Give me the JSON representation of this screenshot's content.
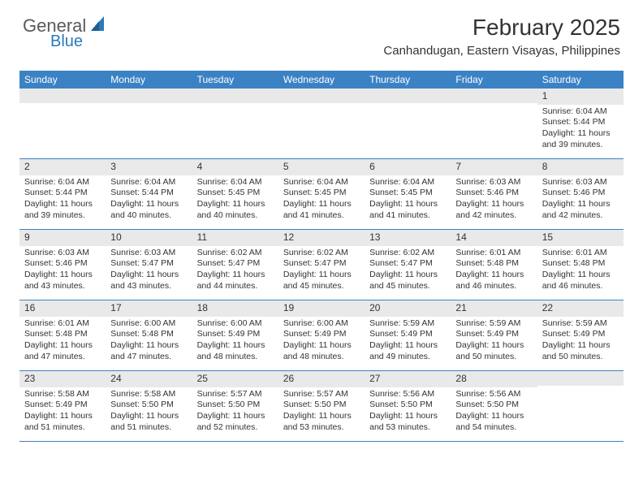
{
  "logo": {
    "text1": "General",
    "text2": "Blue"
  },
  "title": "February 2025",
  "subtitle": "Canhandugan, Eastern Visayas, Philippines",
  "colors": {
    "header_bg": "#3b82c4",
    "header_text": "#ffffff",
    "daynum_bg": "#e9e9e9",
    "row_border": "#3b82c4",
    "body_text": "#333333",
    "logo_gray": "#5a5a5a",
    "logo_blue": "#2a7ab9",
    "page_bg": "#ffffff"
  },
  "day_names": [
    "Sunday",
    "Monday",
    "Tuesday",
    "Wednesday",
    "Thursday",
    "Friday",
    "Saturday"
  ],
  "weeks": [
    [
      {
        "day": "",
        "sunrise": "",
        "sunset": "",
        "daylight1": "",
        "daylight2": ""
      },
      {
        "day": "",
        "sunrise": "",
        "sunset": "",
        "daylight1": "",
        "daylight2": ""
      },
      {
        "day": "",
        "sunrise": "",
        "sunset": "",
        "daylight1": "",
        "daylight2": ""
      },
      {
        "day": "",
        "sunrise": "",
        "sunset": "",
        "daylight1": "",
        "daylight2": ""
      },
      {
        "day": "",
        "sunrise": "",
        "sunset": "",
        "daylight1": "",
        "daylight2": ""
      },
      {
        "day": "",
        "sunrise": "",
        "sunset": "",
        "daylight1": "",
        "daylight2": ""
      },
      {
        "day": "1",
        "sunrise": "Sunrise: 6:04 AM",
        "sunset": "Sunset: 5:44 PM",
        "daylight1": "Daylight: 11 hours",
        "daylight2": "and 39 minutes."
      }
    ],
    [
      {
        "day": "2",
        "sunrise": "Sunrise: 6:04 AM",
        "sunset": "Sunset: 5:44 PM",
        "daylight1": "Daylight: 11 hours",
        "daylight2": "and 39 minutes."
      },
      {
        "day": "3",
        "sunrise": "Sunrise: 6:04 AM",
        "sunset": "Sunset: 5:44 PM",
        "daylight1": "Daylight: 11 hours",
        "daylight2": "and 40 minutes."
      },
      {
        "day": "4",
        "sunrise": "Sunrise: 6:04 AM",
        "sunset": "Sunset: 5:45 PM",
        "daylight1": "Daylight: 11 hours",
        "daylight2": "and 40 minutes."
      },
      {
        "day": "5",
        "sunrise": "Sunrise: 6:04 AM",
        "sunset": "Sunset: 5:45 PM",
        "daylight1": "Daylight: 11 hours",
        "daylight2": "and 41 minutes."
      },
      {
        "day": "6",
        "sunrise": "Sunrise: 6:04 AM",
        "sunset": "Sunset: 5:45 PM",
        "daylight1": "Daylight: 11 hours",
        "daylight2": "and 41 minutes."
      },
      {
        "day": "7",
        "sunrise": "Sunrise: 6:03 AM",
        "sunset": "Sunset: 5:46 PM",
        "daylight1": "Daylight: 11 hours",
        "daylight2": "and 42 minutes."
      },
      {
        "day": "8",
        "sunrise": "Sunrise: 6:03 AM",
        "sunset": "Sunset: 5:46 PM",
        "daylight1": "Daylight: 11 hours",
        "daylight2": "and 42 minutes."
      }
    ],
    [
      {
        "day": "9",
        "sunrise": "Sunrise: 6:03 AM",
        "sunset": "Sunset: 5:46 PM",
        "daylight1": "Daylight: 11 hours",
        "daylight2": "and 43 minutes."
      },
      {
        "day": "10",
        "sunrise": "Sunrise: 6:03 AM",
        "sunset": "Sunset: 5:47 PM",
        "daylight1": "Daylight: 11 hours",
        "daylight2": "and 43 minutes."
      },
      {
        "day": "11",
        "sunrise": "Sunrise: 6:02 AM",
        "sunset": "Sunset: 5:47 PM",
        "daylight1": "Daylight: 11 hours",
        "daylight2": "and 44 minutes."
      },
      {
        "day": "12",
        "sunrise": "Sunrise: 6:02 AM",
        "sunset": "Sunset: 5:47 PM",
        "daylight1": "Daylight: 11 hours",
        "daylight2": "and 45 minutes."
      },
      {
        "day": "13",
        "sunrise": "Sunrise: 6:02 AM",
        "sunset": "Sunset: 5:47 PM",
        "daylight1": "Daylight: 11 hours",
        "daylight2": "and 45 minutes."
      },
      {
        "day": "14",
        "sunrise": "Sunrise: 6:01 AM",
        "sunset": "Sunset: 5:48 PM",
        "daylight1": "Daylight: 11 hours",
        "daylight2": "and 46 minutes."
      },
      {
        "day": "15",
        "sunrise": "Sunrise: 6:01 AM",
        "sunset": "Sunset: 5:48 PM",
        "daylight1": "Daylight: 11 hours",
        "daylight2": "and 46 minutes."
      }
    ],
    [
      {
        "day": "16",
        "sunrise": "Sunrise: 6:01 AM",
        "sunset": "Sunset: 5:48 PM",
        "daylight1": "Daylight: 11 hours",
        "daylight2": "and 47 minutes."
      },
      {
        "day": "17",
        "sunrise": "Sunrise: 6:00 AM",
        "sunset": "Sunset: 5:48 PM",
        "daylight1": "Daylight: 11 hours",
        "daylight2": "and 47 minutes."
      },
      {
        "day": "18",
        "sunrise": "Sunrise: 6:00 AM",
        "sunset": "Sunset: 5:49 PM",
        "daylight1": "Daylight: 11 hours",
        "daylight2": "and 48 minutes."
      },
      {
        "day": "19",
        "sunrise": "Sunrise: 6:00 AM",
        "sunset": "Sunset: 5:49 PM",
        "daylight1": "Daylight: 11 hours",
        "daylight2": "and 48 minutes."
      },
      {
        "day": "20",
        "sunrise": "Sunrise: 5:59 AM",
        "sunset": "Sunset: 5:49 PM",
        "daylight1": "Daylight: 11 hours",
        "daylight2": "and 49 minutes."
      },
      {
        "day": "21",
        "sunrise": "Sunrise: 5:59 AM",
        "sunset": "Sunset: 5:49 PM",
        "daylight1": "Daylight: 11 hours",
        "daylight2": "and 50 minutes."
      },
      {
        "day": "22",
        "sunrise": "Sunrise: 5:59 AM",
        "sunset": "Sunset: 5:49 PM",
        "daylight1": "Daylight: 11 hours",
        "daylight2": "and 50 minutes."
      }
    ],
    [
      {
        "day": "23",
        "sunrise": "Sunrise: 5:58 AM",
        "sunset": "Sunset: 5:49 PM",
        "daylight1": "Daylight: 11 hours",
        "daylight2": "and 51 minutes."
      },
      {
        "day": "24",
        "sunrise": "Sunrise: 5:58 AM",
        "sunset": "Sunset: 5:50 PM",
        "daylight1": "Daylight: 11 hours",
        "daylight2": "and 51 minutes."
      },
      {
        "day": "25",
        "sunrise": "Sunrise: 5:57 AM",
        "sunset": "Sunset: 5:50 PM",
        "daylight1": "Daylight: 11 hours",
        "daylight2": "and 52 minutes."
      },
      {
        "day": "26",
        "sunrise": "Sunrise: 5:57 AM",
        "sunset": "Sunset: 5:50 PM",
        "daylight1": "Daylight: 11 hours",
        "daylight2": "and 53 minutes."
      },
      {
        "day": "27",
        "sunrise": "Sunrise: 5:56 AM",
        "sunset": "Sunset: 5:50 PM",
        "daylight1": "Daylight: 11 hours",
        "daylight2": "and 53 minutes."
      },
      {
        "day": "28",
        "sunrise": "Sunrise: 5:56 AM",
        "sunset": "Sunset: 5:50 PM",
        "daylight1": "Daylight: 11 hours",
        "daylight2": "and 54 minutes."
      },
      {
        "day": "",
        "sunrise": "",
        "sunset": "",
        "daylight1": "",
        "daylight2": ""
      }
    ]
  ]
}
